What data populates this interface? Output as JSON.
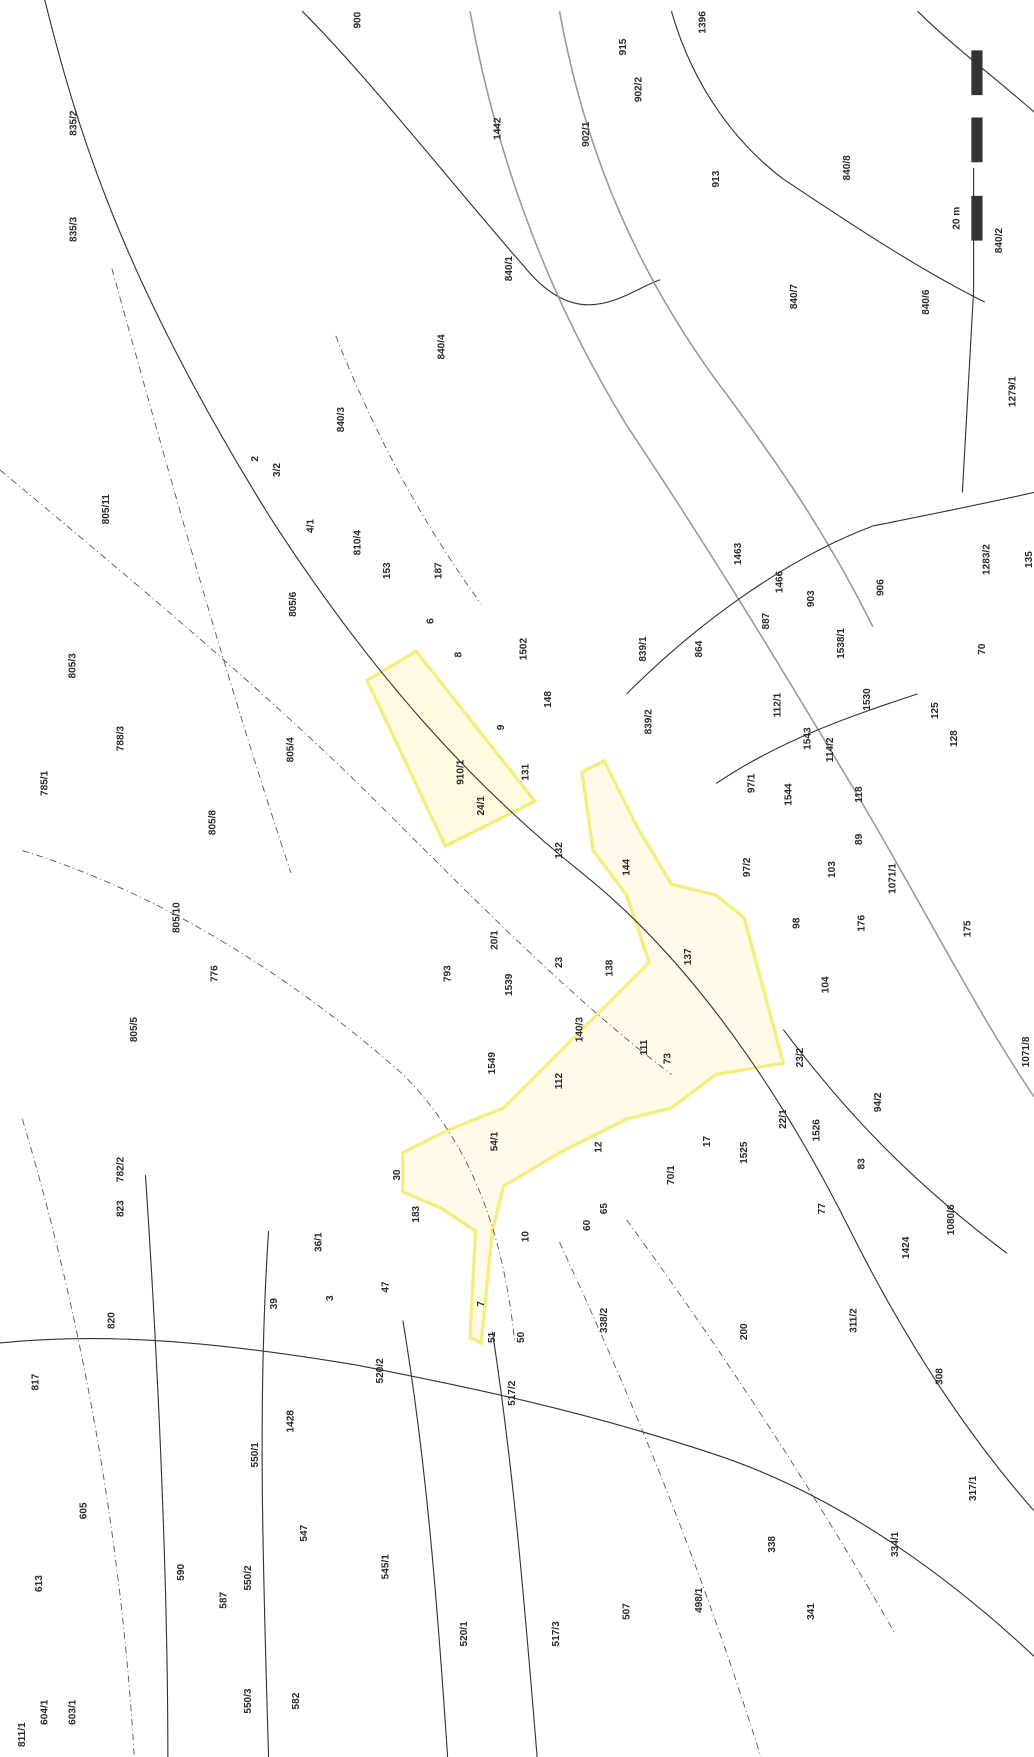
{
  "map": {
    "scale": "20 m",
    "labels": [
      "915",
      "902/1",
      "902/2",
      "840/8",
      "840/7",
      "840/6",
      "840/2",
      "840/1",
      "840/4",
      "840/3",
      "835/2",
      "835/3",
      "805/11",
      "805/3",
      "805/6",
      "805/4",
      "805/8",
      "805/10",
      "805/5",
      "788/3",
      "785/1",
      "782/2",
      "823",
      "820",
      "817",
      "613",
      "603/1",
      "605",
      "590",
      "587",
      "550/2",
      "550/3",
      "550/1",
      "547",
      "582",
      "545/1",
      "520/1",
      "520/2",
      "517/3",
      "507",
      "498/1",
      "341",
      "334/1",
      "317/1",
      "338",
      "308",
      "311/2",
      "338/2",
      "200",
      "1080/6",
      "1424",
      "77",
      "83",
      "94/2",
      "1526",
      "1525",
      "23/2",
      "22/1",
      "17",
      "70/1",
      "12",
      "10",
      "7",
      "47",
      "183",
      "54/1",
      "112",
      "111",
      "73",
      "140/3",
      "138",
      "20/1",
      "793",
      "776",
      "1549",
      "1539",
      "144",
      "137",
      "97/1",
      "97/2",
      "98",
      "103",
      "104",
      "176",
      "1544",
      "118",
      "112/1",
      "864",
      "887",
      "903",
      "1466",
      "906",
      "839/1",
      "839/2",
      "131",
      "132",
      "148",
      "9",
      "910/1",
      "187",
      "6",
      "8",
      "153",
      "810/4",
      "3/2",
      "2",
      "4/1",
      "1463",
      "1530",
      "1538/1",
      "70",
      "135",
      "1279/1",
      "1283/2",
      "175",
      "1071/8",
      "1071/1",
      "39",
      "3",
      "30",
      "1428",
      "36/1",
      "89",
      "1543",
      "114/2",
      "128",
      "125",
      "1502",
      "913",
      "1442",
      "65",
      "60",
      "23",
      "24/1",
      "517/2",
      "51",
      "50",
      "1396",
      "900",
      "811/1",
      "604/1"
    ]
  }
}
